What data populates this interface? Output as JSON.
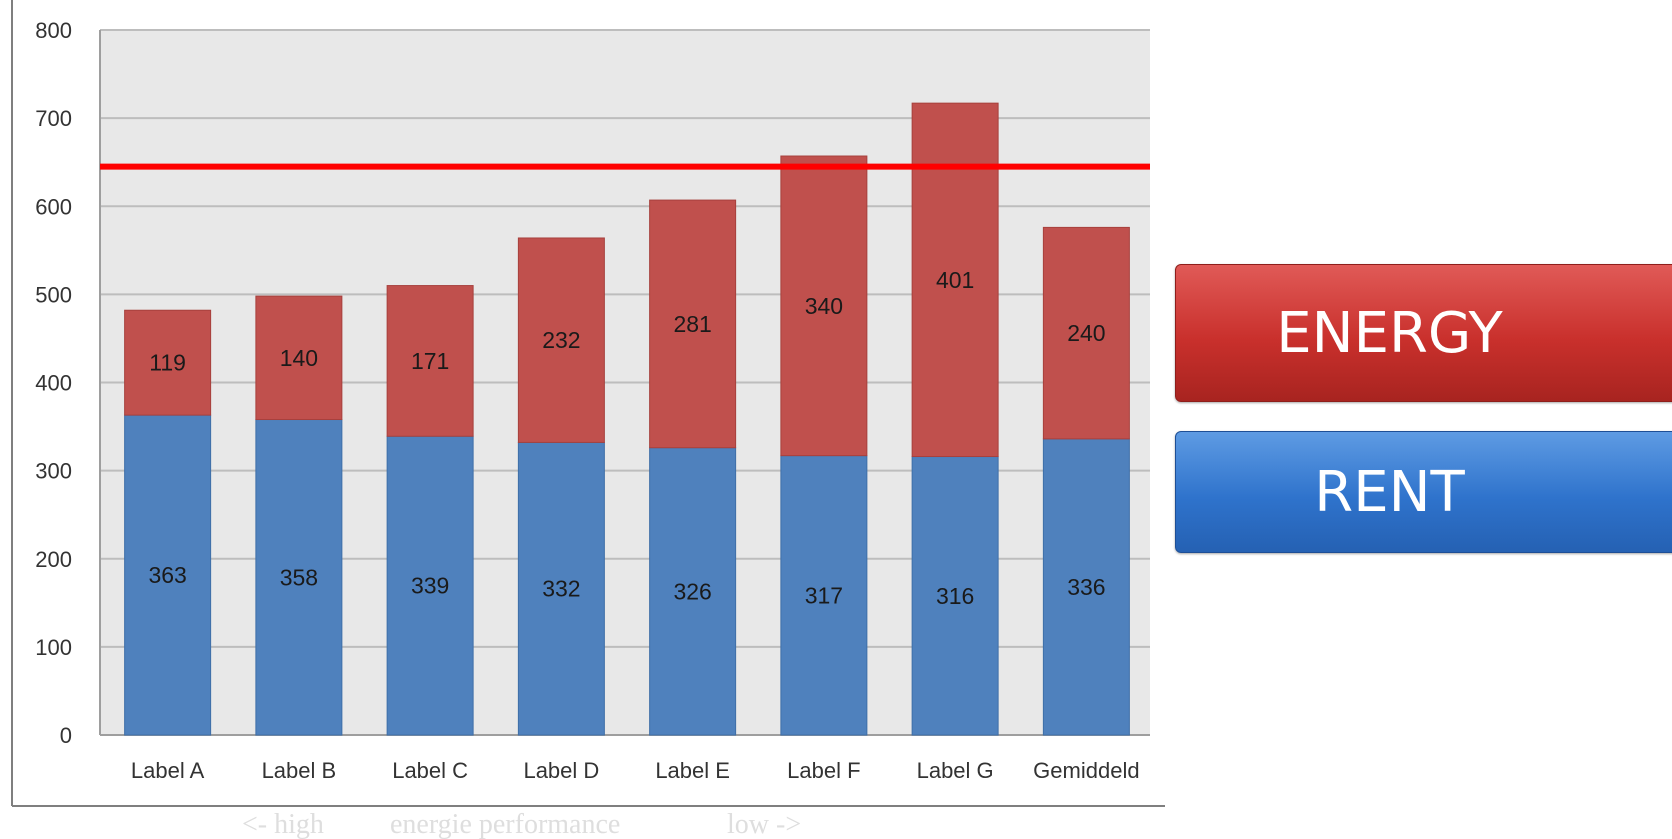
{
  "chart_data": {
    "type": "bar",
    "stacked": true,
    "categories": [
      "Label A",
      "Label B",
      "Label C",
      "Label D",
      "Label E",
      "Label F",
      "Label G",
      "Gemiddeld"
    ],
    "series": [
      {
        "name": "RENT",
        "color": "#4f81bd",
        "values": [
          363,
          358,
          339,
          332,
          326,
          317,
          316,
          336
        ]
      },
      {
        "name": "ENERGY",
        "color": "#c0504d",
        "values": [
          119,
          140,
          171,
          232,
          281,
          340,
          401,
          240
        ]
      }
    ],
    "reference_line": {
      "value": 645,
      "color": "#ff0000"
    },
    "ylim": [
      0,
      800
    ],
    "yticks": [
      0,
      100,
      200,
      300,
      400,
      500,
      600,
      700,
      800
    ],
    "grid": true,
    "legend_placement": "right",
    "xlabel_parts": [
      "<- high",
      "energie performance",
      "low ->"
    ],
    "title": "",
    "ylabel": ""
  },
  "legend": {
    "energy_label": "ENERGY",
    "rent_label": "RENT"
  }
}
